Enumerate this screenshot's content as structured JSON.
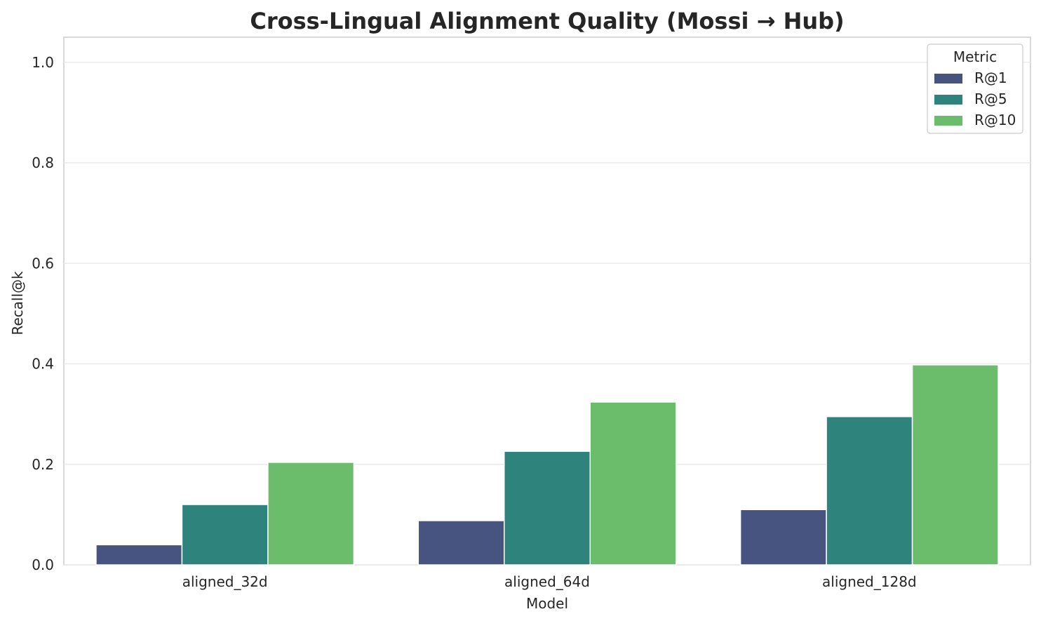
{
  "chart_data": {
    "type": "bar",
    "title": "Cross-Lingual Alignment Quality (Mossi → Hub)",
    "xlabel": "Model",
    "ylabel": "Recall@k",
    "categories": [
      "aligned_32d",
      "aligned_64d",
      "aligned_128d"
    ],
    "series": [
      {
        "name": "R@1",
        "color": "#46547f",
        "values": [
          0.04,
          0.088,
          0.11
        ]
      },
      {
        "name": "R@5",
        "color": "#2e837d",
        "values": [
          0.12,
          0.226,
          0.295
        ]
      },
      {
        "name": "R@10",
        "color": "#6bbd6b",
        "values": [
          0.204,
          0.324,
          0.398
        ]
      }
    ],
    "ylim": [
      0,
      1.05
    ],
    "yticks": [
      "0.0",
      "0.2",
      "0.4",
      "0.6",
      "0.8",
      "1.0"
    ],
    "grid": true,
    "legend": {
      "title": "Metric",
      "placement": "top-right"
    }
  }
}
